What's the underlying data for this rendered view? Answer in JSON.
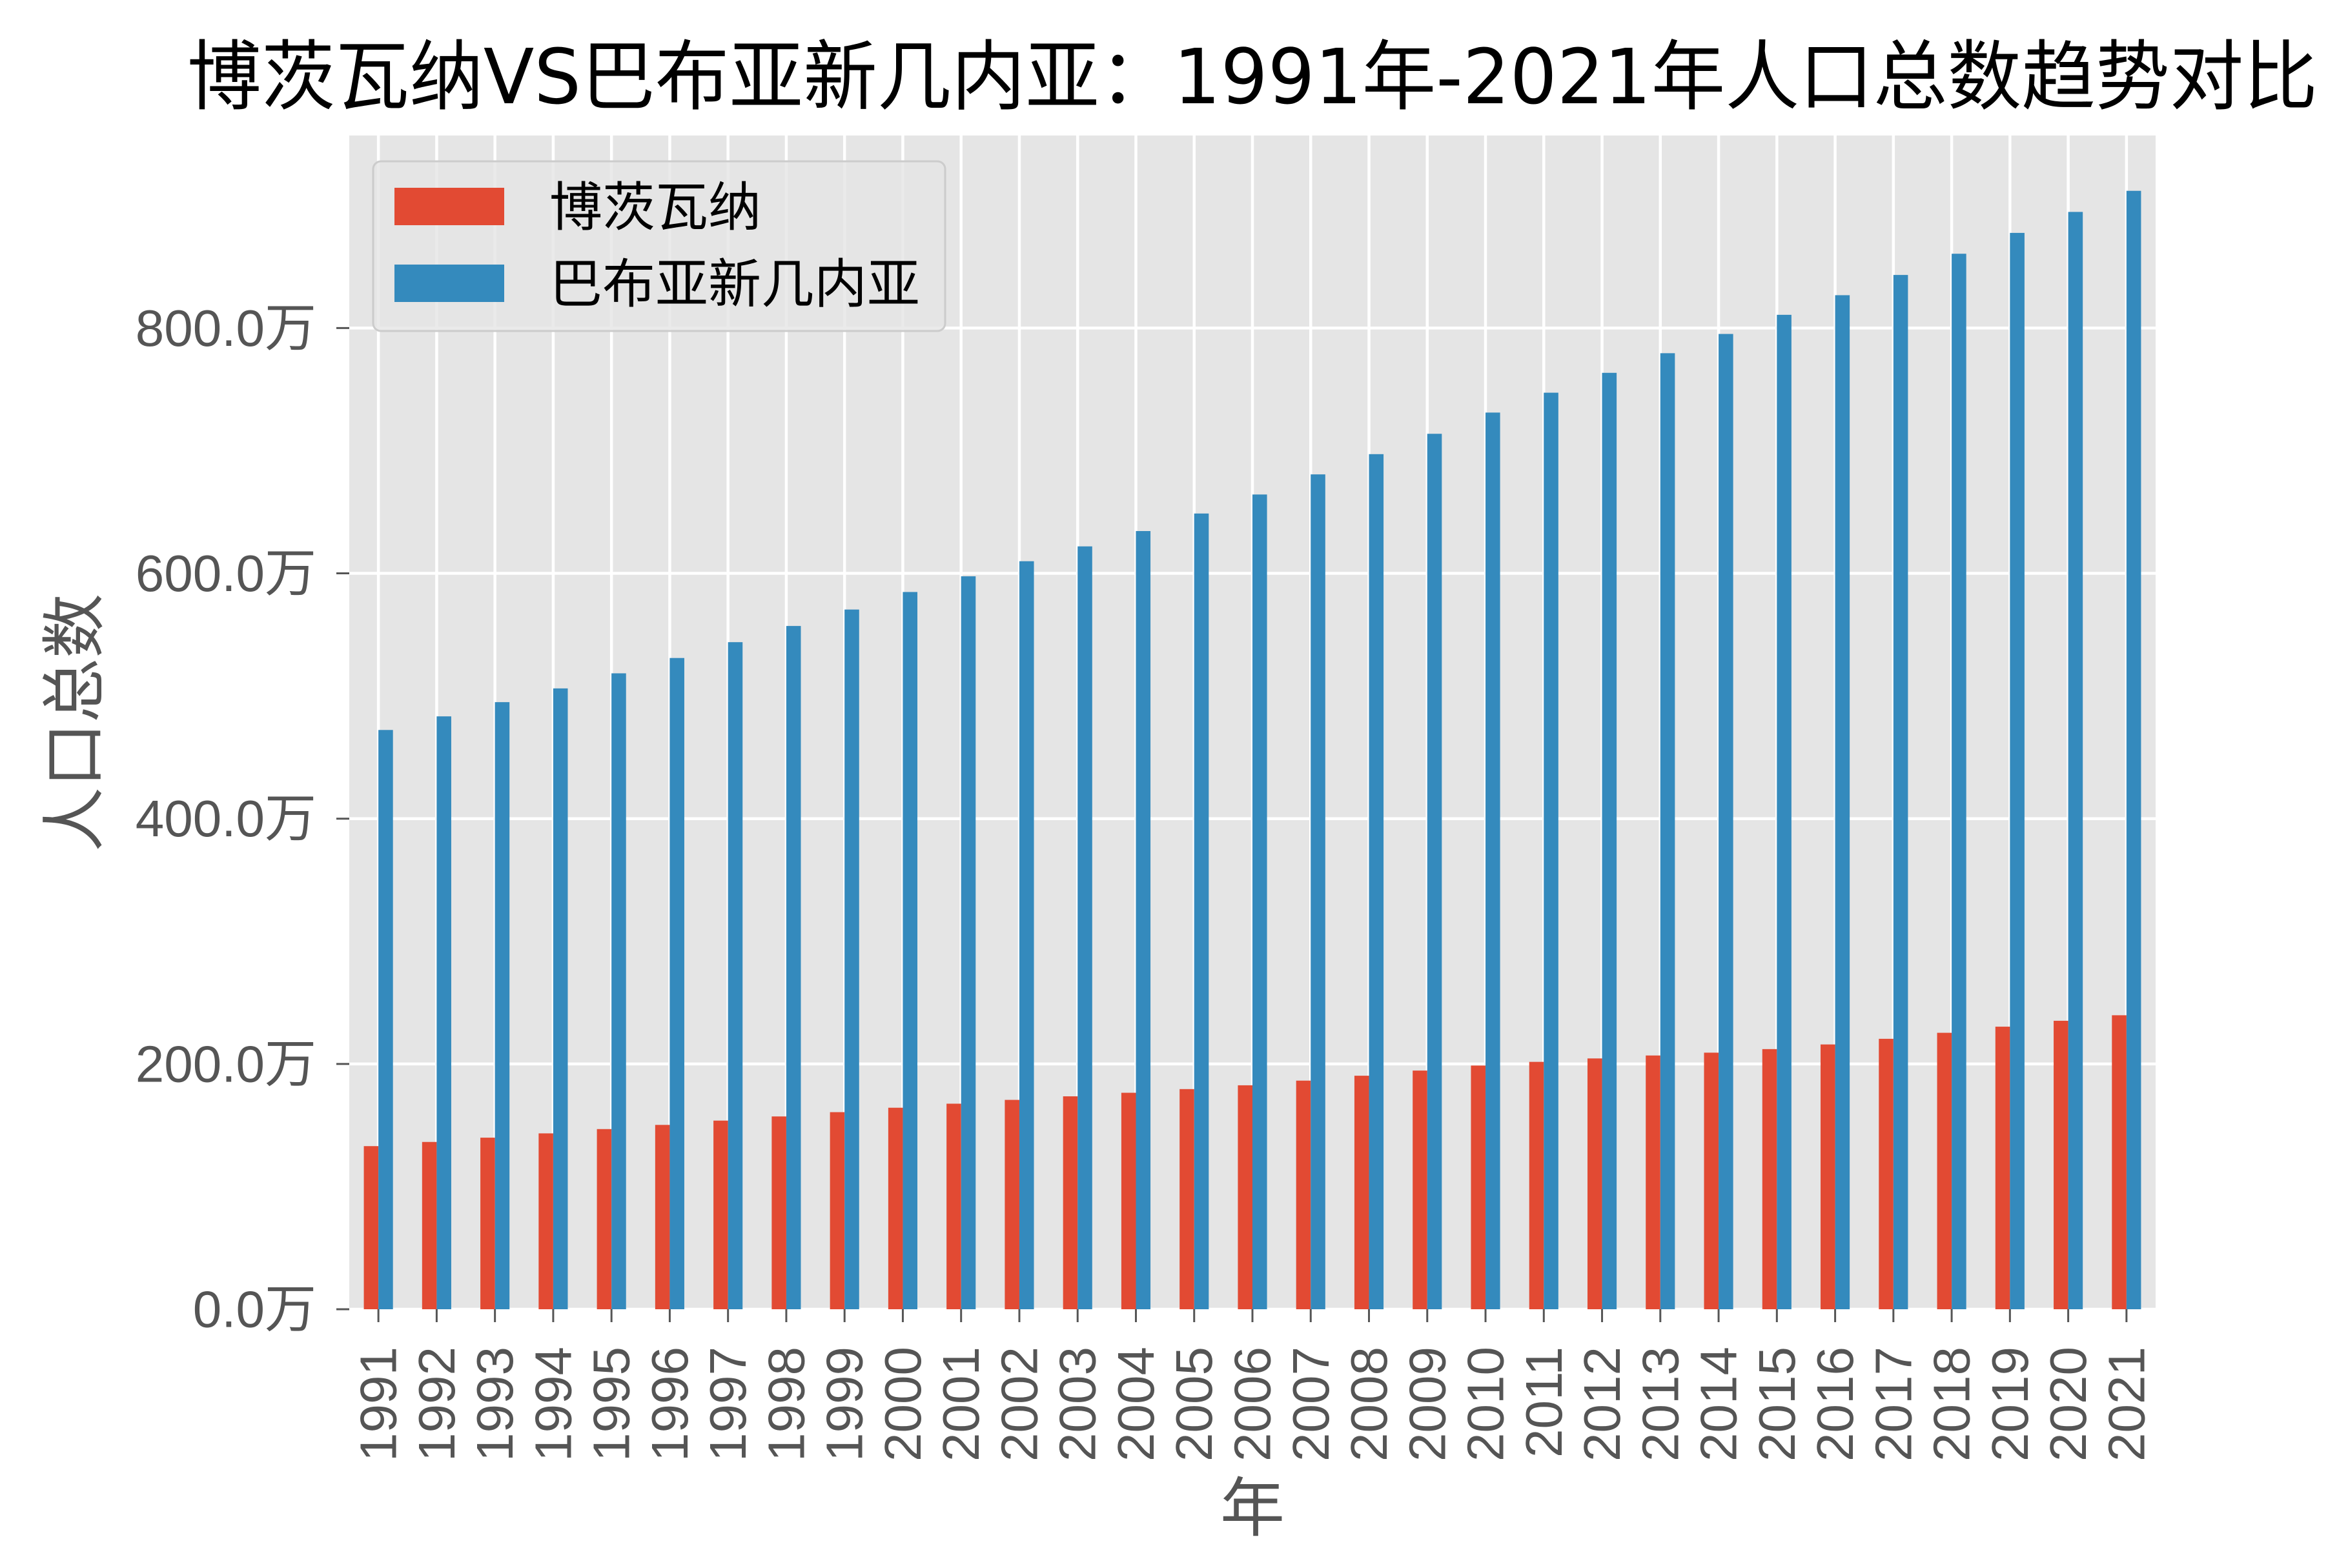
{
  "chart_data": {
    "type": "bar",
    "title": "博茨瓦纳VS巴布亚新几内亚：1991年-2021年人口总数趋势对比",
    "xlabel": "年",
    "ylabel": "人口总数",
    "categories": [
      "1991",
      "1992",
      "1993",
      "1994",
      "1995",
      "1996",
      "1997",
      "1998",
      "1999",
      "2000",
      "2001",
      "2002",
      "2003",
      "2004",
      "2005",
      "2006",
      "2007",
      "2008",
      "2009",
      "2010",
      "2011",
      "2012",
      "2013",
      "2014",
      "2015",
      "2016",
      "2017",
      "2018",
      "2019",
      "2020",
      "2021"
    ],
    "series": [
      {
        "name": "博茨瓦纳",
        "color": "#E24A33",
        "values": [
          133.0,
          136.4,
          139.9,
          143.4,
          146.9,
          150.3,
          153.8,
          157.2,
          160.7,
          164.3,
          167.6,
          170.7,
          173.6,
          176.5,
          179.5,
          182.6,
          186.4,
          190.4,
          194.6,
          198.7,
          201.7,
          204.5,
          206.9,
          209.2,
          212.1,
          215.9,
          220.5,
          225.4,
          230.4,
          235.2,
          239.7
        ]
      },
      {
        "name": "巴布亚新几内亚",
        "color": "#348ABD",
        "values": [
          472.3,
          483.4,
          495.0,
          506.2,
          518.5,
          531.0,
          543.9,
          557.1,
          570.5,
          584.8,
          597.6,
          609.9,
          622.0,
          634.5,
          648.8,
          664.3,
          680.7,
          697.2,
          713.8,
          731.1,
          747.3,
          763.5,
          779.5,
          795.2,
          810.8,
          826.8,
          843.3,
          860.6,
          877.6,
          894.7,
          911.9
        ]
      }
    ],
    "yticks": [
      0,
      200,
      400,
      600,
      800
    ],
    "ytick_labels": [
      "0.0万",
      "200.0万",
      "400.0万",
      "600.0万",
      "800.0万"
    ],
    "ylim": [
      0,
      957
    ],
    "grid": true,
    "legend_position": "top-left",
    "colors": {
      "plot_background": "#E5E5E5",
      "grid": "#FFFFFF",
      "tick": "#555555",
      "tick_text": "#555555",
      "axis_label": "#555555",
      "title": "#000000",
      "legend_background": "#E5E5E5",
      "legend_border": "#CCCCCC"
    }
  }
}
